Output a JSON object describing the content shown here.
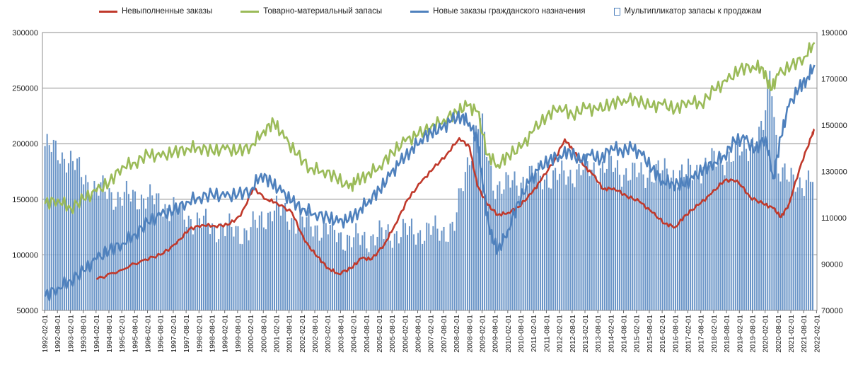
{
  "chart_data": {
    "type": "line+bar",
    "title": "",
    "legend": {
      "position": "top",
      "entries": [
        {
          "name": "Невыполненные  заказы",
          "color": "#c0392b"
        },
        {
          "name": "Товарно-материальный запасы",
          "color": "#9bbb59"
        },
        {
          "name": "Новые заказы гражданского назначения",
          "color": "#4f81bd"
        },
        {
          "name": "Мультипликатор запасы к продажам",
          "color": "#4f81bd"
        }
      ]
    },
    "y_left": {
      "min": 50000,
      "max": 300000,
      "ticks": [
        50000,
        100000,
        150000,
        200000,
        250000,
        300000
      ],
      "labels": [
        "50000",
        "100000",
        "150000",
        "200000",
        "250000",
        "300000"
      ]
    },
    "y_right": {
      "min": 70000,
      "max": 190000,
      "ticks": [
        70000,
        90000,
        110000,
        130000,
        150000,
        170000,
        190000
      ],
      "labels": [
        "70000",
        "90000",
        "110000",
        "130000",
        "150000",
        "170000",
        "190000"
      ]
    },
    "x_ticks": [
      "1992-02-01",
      "1992-08-01",
      "1993-02-01",
      "1993-08-01",
      "1994-02-01",
      "1994-08-01",
      "1995-02-01",
      "1995-08-01",
      "1996-02-01",
      "1996-08-01",
      "1997-02-01",
      "1997-08-01",
      "1998-02-01",
      "1998-08-01",
      "1999-02-01",
      "1999-08-01",
      "2000-02-01",
      "2000-08-01",
      "2001-02-01",
      "2001-08-01",
      "2002-02-01",
      "2002-08-01",
      "2003-02-01",
      "2003-08-01",
      "2004-02-01",
      "2004-08-01",
      "2005-02-01",
      "2005-08-01",
      "2006-02-01",
      "2006-08-01",
      "2007-02-01",
      "2007-08-01",
      "2008-02-01",
      "2008-08-01",
      "2009-02-01",
      "2009-08-01",
      "2010-02-01",
      "2010-08-01",
      "2011-02-01",
      "2011-08-01",
      "2012-02-01",
      "2012-08-01",
      "2013-02-01",
      "2013-08-01",
      "2014-02-01",
      "2014-08-01",
      "2015-02-01",
      "2015-08-01",
      "2016-02-01",
      "2016-08-01",
      "2017-02-01",
      "2017-08-01",
      "2018-02-01",
      "2018-08-01",
      "2019-02-01",
      "2019-08-01",
      "2020-02-01",
      "2020-08-01",
      "2021-02-01",
      "2021-08-01",
      "2022-02-01"
    ],
    "series": [
      {
        "name": "Невыполненные  заказы",
        "axis": "left",
        "color": "#c0392b",
        "x": [
          1994.1,
          1995.0,
          1996.0,
          1996.6,
          1997.2,
          1997.7,
          1998.2,
          1998.7,
          1999.2,
          1999.7,
          2000.2,
          2000.7,
          2001.1,
          2001.7,
          2002.2,
          2002.7,
          2003.1,
          2003.5,
          2004.0,
          2004.4,
          2004.8,
          2005.3,
          2005.7,
          2006.2,
          2006.7,
          2007.2,
          2007.7,
          2008.2,
          2008.6,
          2008.9,
          2009.3,
          2009.7,
          2010.1,
          2010.5,
          2011.0,
          2011.4,
          2011.9,
          2012.3,
          2012.6,
          2013.0,
          2013.4,
          2013.8,
          2014.2,
          2014.7,
          2015.2,
          2015.7,
          2016.2,
          2016.6,
          2017.0,
          2017.5,
          2018.0,
          2018.5,
          2019.0,
          2019.5,
          2020.0,
          2020.4,
          2020.7,
          2021.0,
          2021.5,
          2021.9,
          2022.0
        ],
        "values": [
          78000,
          86000,
          96000,
          100000,
          110000,
          123000,
          127000,
          126000,
          127000,
          135000,
          160000,
          150000,
          147000,
          138000,
          112000,
          98000,
          88000,
          83000,
          88000,
          97000,
          96000,
          110000,
          127000,
          150000,
          165000,
          178000,
          190000,
          205000,
          197000,
          162000,
          145000,
          136000,
          138000,
          143000,
          155000,
          168000,
          185000,
          204000,
          195000,
          181000,
          172000,
          159000,
          160000,
          153000,
          148000,
          138000,
          128000,
          125000,
          136000,
          145000,
          155000,
          167000,
          167000,
          152000,
          146000,
          142000,
          134000,
          145000,
          183000,
          207000,
          213000
        ]
      },
      {
        "name": "Товарно-материальный запасы",
        "axis": "left",
        "color": "#9bbb59",
        "x": [
          1992.1,
          1992.6,
          1993.1,
          1993.6,
          1994.1,
          1994.6,
          1995.1,
          1995.6,
          1996.1,
          1996.6,
          1997.1,
          1997.6,
          1998.1,
          1998.6,
          1999.1,
          1999.6,
          2000.1,
          2000.6,
          2001.0,
          2001.4,
          2001.9,
          2002.4,
          2002.9,
          2003.4,
          2003.9,
          2004.2,
          2004.6,
          2005.1,
          2005.6,
          2006.1,
          2006.6,
          2007.1,
          2007.6,
          2008.1,
          2008.5,
          2008.9,
          2009.3,
          2009.7,
          2010.1,
          2010.6,
          2011.1,
          2011.6,
          2012.1,
          2012.6,
          2013.1,
          2013.6,
          2014.1,
          2014.6,
          2015.1,
          2015.6,
          2016.1,
          2016.6,
          2017.1,
          2017.6,
          2018.1,
          2018.6,
          2019.1,
          2019.6,
          2020.0,
          2020.3,
          2020.6,
          2021.1,
          2021.6,
          2022.0
        ],
        "values": [
          146000,
          150000,
          142000,
          150000,
          157000,
          165000,
          180000,
          183000,
          190000,
          188000,
          192000,
          196000,
          197000,
          193000,
          195000,
          193000,
          198000,
          212000,
          219000,
          205000,
          190000,
          178000,
          176000,
          170000,
          160000,
          166000,
          172000,
          180000,
          192000,
          202000,
          208000,
          215000,
          222000,
          228000,
          234000,
          229000,
          190000,
          181000,
          190000,
          196000,
          212000,
          225000,
          234000,
          226000,
          232000,
          230000,
          236000,
          240000,
          240000,
          233000,
          235000,
          231000,
          239000,
          236000,
          248000,
          256000,
          267000,
          270000,
          268000,
          248000,
          262000,
          270000,
          278000,
          291000
        ]
      },
      {
        "name": "Новые заказы гражданского назначения",
        "axis": "right",
        "color": "#4f81bd",
        "x": [
          1992.1,
          1992.6,
          1993.1,
          1993.6,
          1994.1,
          1994.6,
          1995.1,
          1995.6,
          1996.1,
          1996.6,
          1997.1,
          1997.6,
          1998.1,
          1998.6,
          1999.1,
          1999.6,
          2000.1,
          2000.5,
          2000.9,
          2001.3,
          2001.7,
          2002.1,
          2002.6,
          2003.1,
          2003.5,
          2003.9,
          2004.3,
          2004.7,
          2005.1,
          2005.5,
          2005.9,
          2006.3,
          2006.7,
          2007.1,
          2007.5,
          2007.9,
          2008.3,
          2008.6,
          2008.9,
          2009.1,
          2009.4,
          2009.7,
          2010.1,
          2010.5,
          2010.9,
          2011.3,
          2011.7,
          2012.1,
          2012.5,
          2012.9,
          2013.3,
          2013.7,
          2014.1,
          2014.5,
          2014.9,
          2015.3,
          2015.7,
          2016.1,
          2016.5,
          2016.9,
          2017.3,
          2017.7,
          2018.1,
          2018.5,
          2018.9,
          2019.3,
          2019.7,
          2020.1,
          2020.4,
          2020.7,
          2021.0,
          2021.4,
          2021.7,
          2022.0
        ],
        "values": [
          76000,
          80000,
          83000,
          87000,
          92000,
          96000,
          99000,
          103000,
          108000,
          111000,
          113000,
          117000,
          119000,
          120000,
          119000,
          120000,
          122000,
          129000,
          125000,
          121000,
          117000,
          114000,
          112000,
          110000,
          108000,
          109000,
          113000,
          118000,
          122000,
          128000,
          134000,
          139000,
          144000,
          147000,
          148000,
          152000,
          154000,
          151000,
          144000,
          125000,
          103000,
          96000,
          105000,
          117000,
          125000,
          131000,
          135000,
          137000,
          139000,
          134000,
          137000,
          135000,
          141000,
          139000,
          140000,
          137000,
          131000,
          126000,
          125000,
          124000,
          127000,
          131000,
          134000,
          137000,
          143000,
          144000,
          139000,
          145000,
          127000,
          145000,
          158000,
          166000,
          170000,
          176000
        ]
      }
    ],
    "bar_series": {
      "name": "Мультипликатор запасы к продажам",
      "axis": "left",
      "color": "#4f81bd",
      "x": [
        1992.1,
        1993.0,
        1994.0,
        1995.0,
        1996.0,
        1997.0,
        1998.0,
        1999.0,
        2000.0,
        2001.0,
        2002.0,
        2003.0,
        2004.0,
        2005.0,
        2006.0,
        2007.0,
        2008.0,
        2008.5,
        2009.0,
        2009.5,
        2010.0,
        2011.0,
        2012.0,
        2013.0,
        2014.0,
        2015.0,
        2016.0,
        2017.0,
        2018.0,
        2019.0,
        2020.0,
        2020.3,
        2020.6,
        2021.0,
        2022.0
      ],
      "values": [
        198000,
        187000,
        160000,
        152000,
        152000,
        142000,
        130000,
        123000,
        121000,
        142000,
        129000,
        124000,
        113000,
        117000,
        121000,
        121000,
        124000,
        182000,
        225000,
        165000,
        162000,
        171000,
        170000,
        176000,
        180000,
        172000,
        175000,
        172000,
        183000,
        190000,
        210000,
        270000,
        180000,
        166000,
        167000
      ]
    }
  }
}
